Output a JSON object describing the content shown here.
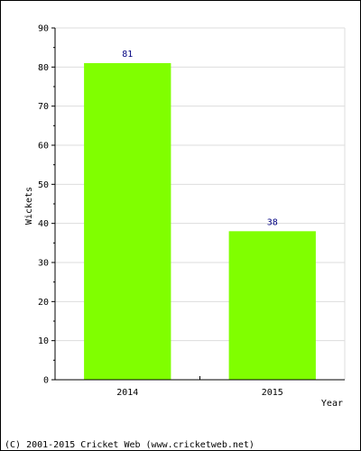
{
  "chart_data": {
    "type": "bar",
    "categories": [
      "2014",
      "2015"
    ],
    "values": [
      81,
      38
    ],
    "value_labels": [
      "81",
      "38"
    ],
    "title": "",
    "xlabel": "Year",
    "ylabel": "Wickets",
    "ylim": [
      0,
      90
    ],
    "yticks": [
      0,
      10,
      20,
      30,
      40,
      50,
      60,
      70,
      80,
      90
    ],
    "ytick_labels": [
      "0",
      "10",
      "20",
      "30",
      "40",
      "50",
      "60",
      "70",
      "80",
      "90"
    ],
    "grid": true,
    "legend": "none",
    "bar_color": "#80ff00",
    "label_color": "#000080",
    "grid_color": "#dddddd"
  },
  "footer": {
    "copyright": "(C) 2001-2015 Cricket Web (www.cricketweb.net)"
  }
}
